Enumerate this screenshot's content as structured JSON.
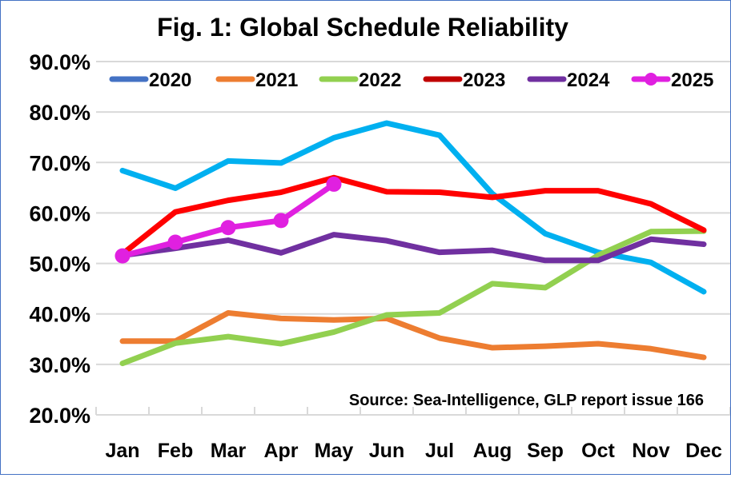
{
  "chart_data": {
    "type": "line",
    "title": "Fig. 1: Global Schedule Reliability",
    "xlabel": "",
    "ylabel": "",
    "ylim": [
      20,
      90
    ],
    "yticks": [
      20,
      30,
      40,
      50,
      60,
      70,
      80,
      90
    ],
    "ytick_labels": [
      "20.0%",
      "30.0%",
      "40.0%",
      "50.0%",
      "60.0%",
      "70.0%",
      "80.0%",
      "90.0%"
    ],
    "grid": true,
    "legend_position": "top",
    "categories": [
      "Jan",
      "Feb",
      "Mar",
      "Apr",
      "May",
      "Jun",
      "Jul",
      "Aug",
      "Sep",
      "Oct",
      "Nov",
      "Dec"
    ],
    "series": [
      {
        "name": "2020",
        "legend_color": "#4472C4",
        "line_color": "#00B0F0",
        "marker": false,
        "values": [
          68.4,
          64.9,
          70.3,
          69.9,
          74.9,
          77.8,
          75.4,
          63.8,
          55.9,
          52.2,
          50.2,
          44.4
        ]
      },
      {
        "name": "2021",
        "legend_color": "#ED7D31",
        "line_color": "#ED7D31",
        "marker": false,
        "values": [
          34.6,
          34.6,
          40.2,
          39.1,
          38.8,
          39.1,
          35.2,
          33.3,
          33.6,
          34.1,
          33.1,
          31.4
        ]
      },
      {
        "name": "2022",
        "legend_color": "#92D050",
        "line_color": "#92D050",
        "marker": false,
        "values": [
          30.2,
          34.2,
          35.5,
          34.1,
          36.4,
          39.8,
          40.2,
          46.0,
          45.2,
          51.6,
          56.3,
          56.4
        ]
      },
      {
        "name": "2023",
        "legend_color": "#C00000",
        "line_color": "#FF0000",
        "marker": false,
        "values": [
          51.9,
          60.2,
          62.5,
          64.1,
          67.0,
          64.2,
          64.1,
          63.1,
          64.4,
          64.4,
          61.8,
          56.6
        ]
      },
      {
        "name": "2024",
        "legend_color": "#7030A0",
        "line_color": "#7030A0",
        "marker": false,
        "values": [
          51.6,
          53.0,
          54.6,
          52.1,
          55.7,
          54.5,
          52.2,
          52.6,
          50.6,
          50.6,
          54.8,
          53.8
        ]
      },
      {
        "name": "2025",
        "legend_color": "#E020E0",
        "line_color": "#E020E0",
        "marker": true,
        "values": [
          51.5,
          54.2,
          57.1,
          58.5,
          65.7,
          null,
          null,
          null,
          null,
          null,
          null,
          null
        ]
      }
    ],
    "annotation": "Source: Sea-Intelligence, GLP report issue 166"
  }
}
